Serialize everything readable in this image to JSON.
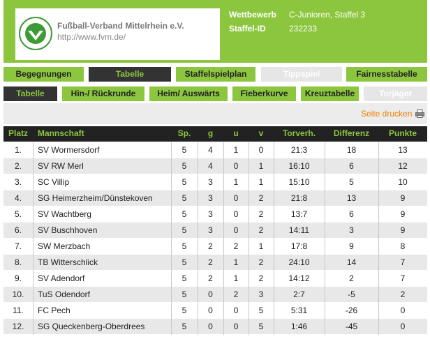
{
  "header": {
    "title": "Fußball-Verband Mittelrhein e.V.",
    "url": "http://www.fvm.de/",
    "info": [
      {
        "label": "Wettbewerb",
        "value": "C-Junioren, Staffel 3"
      },
      {
        "label": "Staffel-ID",
        "value": "232233"
      }
    ]
  },
  "nav": {
    "main": [
      "Begegnungen",
      "Tabelle",
      "Staffelspielplan",
      "Tippspiel",
      "Fairnesstabelle"
    ],
    "sub": [
      "Tabelle",
      "Hin-/ Rückrunde",
      "Heim/ Auswärts",
      "Fieberkurve",
      "Kreuztabelle",
      "Torjäger"
    ]
  },
  "print_link": "Seite drucken",
  "table": {
    "columns": [
      "Platz",
      "Mannschaft",
      "Sp.",
      "g",
      "u",
      "v",
      "Torverh.",
      "Differenz",
      "Punkte"
    ],
    "rows": [
      [
        "1.",
        "SV Wormersdorf",
        5,
        4,
        1,
        0,
        "21:3",
        18,
        13
      ],
      [
        "2.",
        "SV RW Merl",
        5,
        4,
        0,
        1,
        "16:10",
        6,
        12
      ],
      [
        "3.",
        "SC Villip",
        5,
        3,
        1,
        1,
        "15:10",
        5,
        10
      ],
      [
        "4.",
        "SG Heimerzheim/Dünstekoven",
        5,
        3,
        0,
        2,
        "21:8",
        13,
        9
      ],
      [
        "5.",
        "SV Wachtberg",
        5,
        3,
        0,
        2,
        "13:7",
        6,
        9
      ],
      [
        "6.",
        "SV Buschhoven",
        5,
        3,
        0,
        2,
        "14:11",
        3,
        9
      ],
      [
        "7.",
        "SW Merzbach",
        5,
        2,
        2,
        1,
        "17:8",
        9,
        8
      ],
      [
        "8.",
        "TB Witterschlick",
        5,
        2,
        1,
        2,
        "24:10",
        14,
        7
      ],
      [
        "9.",
        "SV Adendorf",
        5,
        2,
        1,
        2,
        "14:12",
        2,
        7
      ],
      [
        "10.",
        "TuS Odendorf",
        5,
        0,
        2,
        3,
        "2:7",
        -5,
        2
      ],
      [
        "11.",
        "FC Pech",
        5,
        0,
        0,
        5,
        "5:31",
        -26,
        0
      ],
      [
        "12.",
        "SG Queckenberg-Oberdrees",
        5,
        0,
        0,
        5,
        "1:46",
        -45,
        0
      ]
    ]
  }
}
